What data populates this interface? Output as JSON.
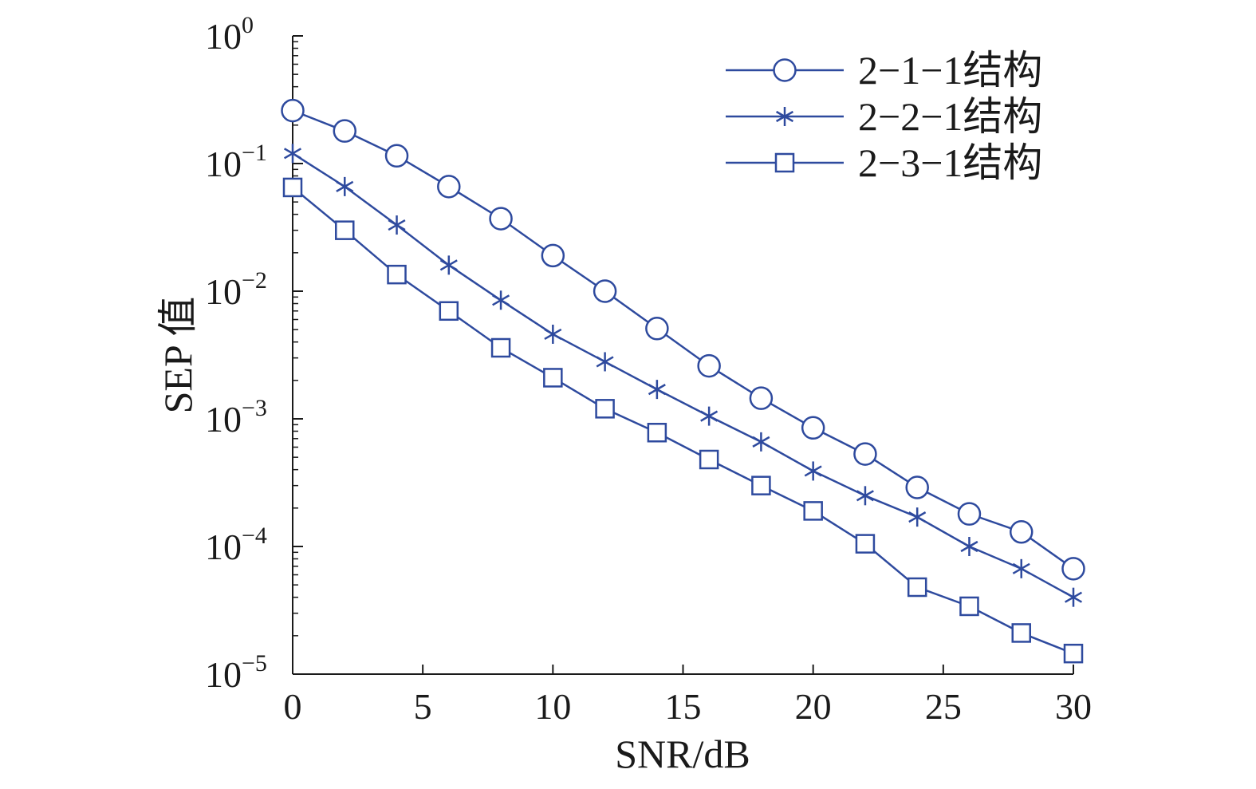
{
  "chart_data": {
    "type": "line",
    "title": "",
    "xlabel": "SNR/dB",
    "ylabel": "SEP 值",
    "xlim": [
      0,
      30
    ],
    "ylim": [
      1e-05,
      1
    ],
    "yscale": "log",
    "grid": false,
    "legend_position": "top-right",
    "color": "#2e4a9e",
    "x_ticks": [
      0,
      5,
      10,
      15,
      20,
      25,
      30
    ],
    "y_ticks": [
      {
        "value": 1,
        "base": "10",
        "exp": "0"
      },
      {
        "value": 0.1,
        "base": "10",
        "exp": "−1"
      },
      {
        "value": 0.01,
        "base": "10",
        "exp": "−2"
      },
      {
        "value": 0.001,
        "base": "10",
        "exp": "−3"
      },
      {
        "value": 0.0001,
        "base": "10",
        "exp": "−4"
      },
      {
        "value": 1e-05,
        "base": "10",
        "exp": "−5"
      }
    ],
    "x": [
      0,
      2,
      4,
      6,
      8,
      10,
      12,
      14,
      16,
      18,
      20,
      22,
      24,
      26,
      28,
      30
    ],
    "series": [
      {
        "name": "2−1−1结构",
        "marker": "circle",
        "values": [
          0.26,
          0.18,
          0.115,
          0.066,
          0.037,
          0.019,
          0.01,
          0.0051,
          0.0026,
          0.00145,
          0.00085,
          0.00053,
          0.00029,
          0.00018,
          0.00013,
          6.7e-05
        ]
      },
      {
        "name": "2−2−1结构",
        "marker": "asterisk",
        "values": [
          0.12,
          0.066,
          0.033,
          0.016,
          0.0085,
          0.0046,
          0.0028,
          0.0017,
          0.00105,
          0.00066,
          0.00039,
          0.00025,
          0.00017,
          0.0001,
          6.7e-05,
          4e-05
        ]
      },
      {
        "name": "2−3−1结构",
        "marker": "square",
        "values": [
          0.065,
          0.03,
          0.0135,
          0.007,
          0.0036,
          0.0021,
          0.0012,
          0.00078,
          0.00048,
          0.0003,
          0.00019,
          0.000105,
          4.8e-05,
          3.4e-05,
          2.1e-05,
          1.45e-05
        ]
      }
    ]
  }
}
